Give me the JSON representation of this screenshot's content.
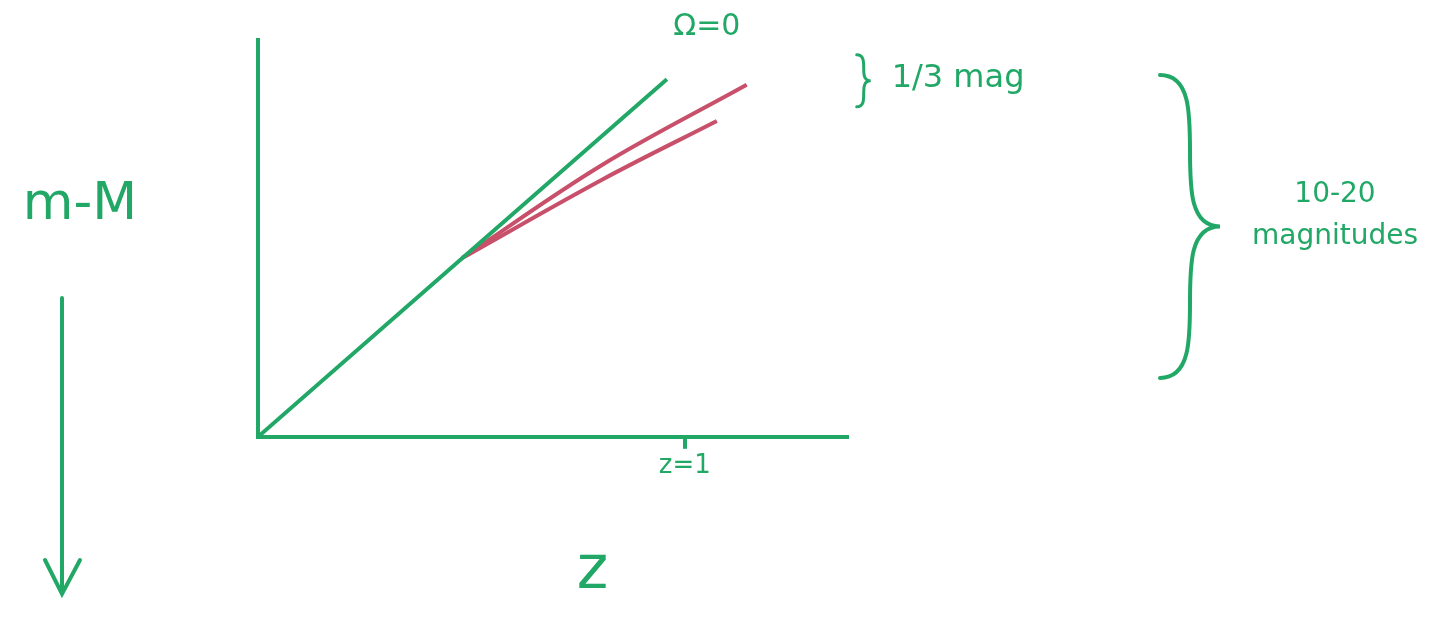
{
  "chart_data": {
    "type": "line",
    "x_label": "z",
    "y_label": "m-M",
    "xlim": [
      0,
      1.38
    ],
    "xticks": [
      {
        "value": 1,
        "label": "z=1"
      }
    ],
    "ylim": [
      0,
      10
    ],
    "yticks": [],
    "tick_labels": "x",
    "grid": false,
    "series": [
      {
        "name": "Ω=0",
        "color": "#22a866",
        "x": [
          0,
          0.958
        ],
        "values": [
          0,
          9.01
        ]
      },
      {
        "color": "#c8506a",
        "x": [
          0.479,
          0.806,
          1.145
        ],
        "values": [
          4.51,
          6.85,
          8.87
        ]
      },
      {
        "color": "#c8506a",
        "x": [
          0.479,
          0.806,
          1.075
        ],
        "values": [
          4.51,
          6.48,
          7.96
        ]
      }
    ],
    "annotations": [
      "1/3 mag",
      "10-20 magnitudes"
    ]
  }
}
